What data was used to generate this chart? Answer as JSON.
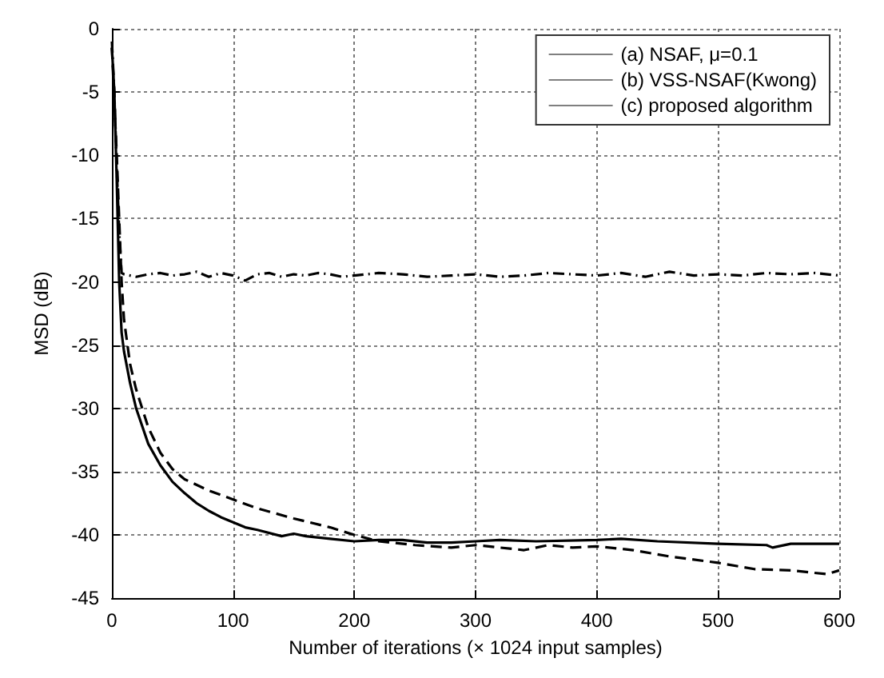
{
  "chart_data": {
    "type": "line",
    "xlabel": "Number of iterations (× 1024 input samples)",
    "ylabel": "MSD (dB)",
    "xlim": [
      0,
      600
    ],
    "ylim": [
      -45,
      0
    ],
    "xticks": [
      0,
      100,
      200,
      300,
      400,
      500,
      600
    ],
    "yticks": [
      0,
      -5,
      -10,
      -15,
      -20,
      -25,
      -30,
      -35,
      -40,
      -45
    ],
    "grid": true,
    "legend": "top right",
    "marker": "none",
    "series": [
      {
        "name": "(a) NSAF, μ=0.1",
        "color": "#000000",
        "line_style": "dashdot",
        "x": [
          0,
          2,
          4,
          6,
          8,
          10,
          20,
          30,
          40,
          50,
          60,
          70,
          80,
          90,
          100,
          110,
          120,
          130,
          140,
          150,
          160,
          170,
          180,
          190,
          200,
          220,
          240,
          260,
          280,
          300,
          320,
          340,
          360,
          380,
          400,
          420,
          440,
          460,
          480,
          500,
          520,
          540,
          560,
          580,
          600
        ],
        "values": [
          -1,
          -5,
          -11,
          -16,
          -19.3,
          -19.4,
          -19.6,
          -19.4,
          -19.3,
          -19.5,
          -19.4,
          -19.2,
          -19.6,
          -19.3,
          -19.5,
          -19.9,
          -19.4,
          -19.3,
          -19.6,
          -19.4,
          -19.5,
          -19.3,
          -19.4,
          -19.6,
          -19.5,
          -19.3,
          -19.4,
          -19.6,
          -19.5,
          -19.4,
          -19.6,
          -19.5,
          -19.3,
          -19.4,
          -19.5,
          -19.3,
          -19.6,
          -19.2,
          -19.5,
          -19.4,
          -19.5,
          -19.3,
          -19.4,
          -19.3,
          -19.5
        ]
      },
      {
        "name": "(b) VSS-NSAF(Kwong)",
        "color": "#000000",
        "line_style": "solid",
        "x": [
          0,
          2,
          4,
          6,
          8,
          10,
          15,
          20,
          30,
          40,
          50,
          60,
          70,
          80,
          90,
          100,
          110,
          120,
          140,
          150,
          160,
          180,
          200,
          220,
          240,
          260,
          280,
          300,
          320,
          350,
          400,
          420,
          450,
          500,
          540,
          545,
          560,
          600
        ],
        "values": [
          -1.5,
          -5,
          -12,
          -20,
          -24,
          -25.5,
          -28,
          -30,
          -32.8,
          -34.5,
          -35.8,
          -36.7,
          -37.5,
          -38.1,
          -38.6,
          -39,
          -39.4,
          -39.6,
          -40.1,
          -39.9,
          -40.1,
          -40.3,
          -40.5,
          -40.4,
          -40.4,
          -40.6,
          -40.6,
          -40.5,
          -40.4,
          -40.5,
          -40.4,
          -40.3,
          -40.5,
          -40.7,
          -40.8,
          -41,
          -40.7,
          -40.7
        ]
      },
      {
        "name": "(c) proposed algorithm",
        "color": "#000000",
        "line_style": "dashed",
        "x": [
          0,
          4,
          8,
          10,
          15,
          20,
          30,
          40,
          50,
          60,
          80,
          100,
          120,
          150,
          180,
          200,
          220,
          250,
          280,
          300,
          320,
          340,
          360,
          380,
          400,
          430,
          460,
          500,
          530,
          560,
          590,
          600
        ],
        "values": [
          -1.5,
          -10,
          -20,
          -23,
          -26.5,
          -28.5,
          -31.5,
          -33.5,
          -34.8,
          -35.6,
          -36.5,
          -37.2,
          -37.9,
          -38.7,
          -39.4,
          -40,
          -40.5,
          -40.8,
          -41,
          -40.8,
          -41,
          -41.2,
          -40.8,
          -41,
          -40.9,
          -41.2,
          -41.7,
          -42.2,
          -42.7,
          -42.8,
          -43.1,
          -42.8
        ]
      }
    ]
  }
}
